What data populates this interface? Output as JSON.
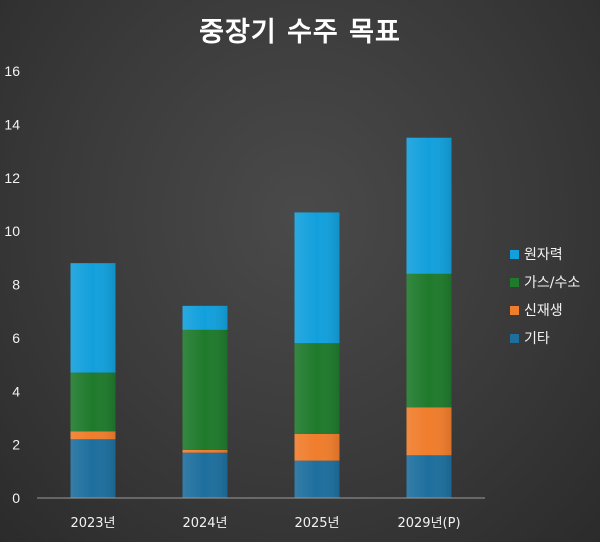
{
  "chart_data": {
    "type": "bar",
    "stacked": true,
    "title": "중장기 수주 목표",
    "xlabel": "",
    "ylabel": "",
    "ylim": [
      0,
      16
    ],
    "yticks": [
      0,
      2,
      4,
      6,
      8,
      10,
      12,
      14,
      16
    ],
    "grid": false,
    "legend_position": "right",
    "categories": [
      "2023년",
      "2024년",
      "2025년",
      "2029년(P)"
    ],
    "series": [
      {
        "name": "기타",
        "color": "#1e6f9e",
        "values": [
          2.2,
          1.7,
          1.4,
          1.6
        ]
      },
      {
        "name": "신재생",
        "color": "#f07d2c",
        "values": [
          0.3,
          0.1,
          1.0,
          1.8
        ]
      },
      {
        "name": "가스/수소",
        "color": "#1f7a2c",
        "values": [
          2.2,
          4.5,
          3.4,
          5.0
        ]
      },
      {
        "name": "원자력",
        "color": "#12a0dc",
        "values": [
          4.1,
          0.9,
          4.9,
          5.1
        ]
      }
    ]
  }
}
